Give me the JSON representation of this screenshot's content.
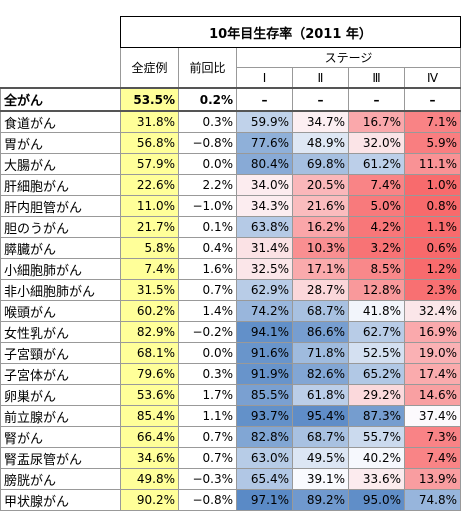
{
  "header": {
    "title": "10年目生存率（2011 年）",
    "columns": [
      "全症例",
      "前回比"
    ],
    "stage_label": "ステージ",
    "stages": [
      "Ⅰ",
      "Ⅱ",
      "Ⅲ",
      "Ⅳ"
    ]
  },
  "table": {
    "rows": [
      [
        "全がん",
        "53.5%",
        "0.2%",
        "–",
        "–",
        "–",
        "–"
      ],
      [
        "食道がん",
        "31.8%",
        "0.3%",
        "59.9%",
        "34.7%",
        "16.7%",
        "7.1%"
      ],
      [
        "胃がん",
        "56.8%",
        "−0.8%",
        "77.6%",
        "48.9%",
        "32.0%",
        "5.9%"
      ],
      [
        "大腸がん",
        "57.9%",
        "0.0%",
        "80.4%",
        "69.8%",
        "61.2%",
        "11.1%"
      ],
      [
        "肝細胞がん",
        "22.6%",
        "2.2%",
        "34.0%",
        "20.5%",
        "7.4%",
        "1.0%"
      ],
      [
        "肝内胆管がん",
        "11.0%",
        "−1.0%",
        "34.3%",
        "21.6%",
        "5.0%",
        "0.8%"
      ],
      [
        "胆のうがん",
        "21.7%",
        "0.1%",
        "63.8%",
        "16.2%",
        "4.2%",
        "1.1%"
      ],
      [
        "膵臓がん",
        "5.8%",
        "0.4%",
        "31.4%",
        "10.3%",
        "3.2%",
        "0.6%"
      ],
      [
        "小細胞肺がん",
        "7.4%",
        "1.6%",
        "32.5%",
        "17.1%",
        "8.5%",
        "1.2%"
      ],
      [
        "非小細胞肺がん",
        "31.5%",
        "0.7%",
        "62.9%",
        "28.7%",
        "12.8%",
        "2.3%"
      ],
      [
        "喉頭がん",
        "60.2%",
        "1.4%",
        "74.2%",
        "68.7%",
        "41.8%",
        "32.4%"
      ],
      [
        "女性乳がん",
        "82.9%",
        "−0.2%",
        "94.1%",
        "86.6%",
        "62.7%",
        "16.9%"
      ],
      [
        "子宮頸がん",
        "68.1%",
        "0.0%",
        "91.6%",
        "71.8%",
        "52.5%",
        "19.0%"
      ],
      [
        "子宮体がん",
        "79.6%",
        "0.3%",
        "91.9%",
        "82.6%",
        "65.2%",
        "17.4%"
      ],
      [
        "卵巣がん",
        "53.6%",
        "1.7%",
        "85.5%",
        "61.8%",
        "29.2%",
        "14.6%"
      ],
      [
        "前立腺がん",
        "85.4%",
        "1.1%",
        "93.7%",
        "95.4%",
        "87.3%",
        "37.4%"
      ],
      [
        "腎がん",
        "66.4%",
        "0.7%",
        "82.8%",
        "68.7%",
        "55.7%",
        "7.3%"
      ],
      [
        "腎盂尿管がん",
        "34.6%",
        "0.7%",
        "63.0%",
        "49.5%",
        "40.2%",
        "7.4%"
      ],
      [
        "膀胱がん",
        "49.8%",
        "−0.3%",
        "65.4%",
        "39.1%",
        "33.6%",
        "13.9%"
      ],
      [
        "甲状腺がん",
        "90.2%",
        "−0.8%",
        "97.1%",
        "89.2%",
        "95.0%",
        "74.8%"
      ]
    ]
  }
}
